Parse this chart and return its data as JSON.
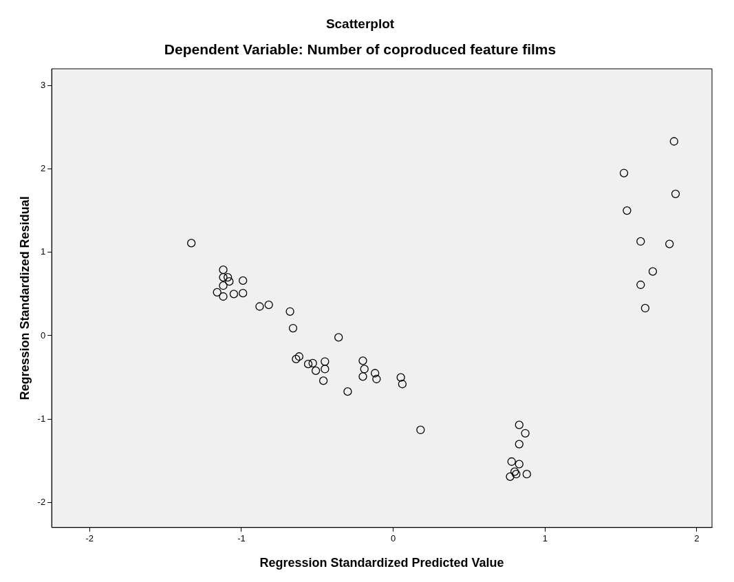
{
  "chart_data": {
    "type": "scatter",
    "title": "Scatterplot",
    "subtitle": "Dependent Variable: Number of coproduced feature films",
    "xlabel": "Regression Standardized Predicted Value",
    "ylabel": "Regression Standardized Residual",
    "xlim": [
      -2.25,
      2.1
    ],
    "ylim": [
      -2.3,
      3.2
    ],
    "xticks": [
      -2,
      -1,
      0,
      1,
      2
    ],
    "yticks": [
      -2,
      -1,
      0,
      1,
      2,
      3
    ],
    "grid": false,
    "legend": false,
    "marker": "circle",
    "series": [
      {
        "color": "#000000",
        "x": [
          -1.33,
          -1.12,
          -1.12,
          -1.09,
          -1.08,
          -1.12,
          -1.16,
          -1.12,
          -0.99,
          -0.99,
          -1.05,
          -0.88,
          -0.82,
          -0.68,
          -0.66,
          -0.36,
          -0.64,
          -0.62,
          -0.56,
          -0.53,
          -0.51,
          -0.45,
          -0.45,
          -0.46,
          -0.3,
          -0.2,
          -0.19,
          -0.2,
          -0.12,
          -0.11,
          0.05,
          0.06,
          0.18,
          0.83,
          0.87,
          0.83,
          0.78,
          0.83,
          0.8,
          0.81,
          0.77,
          0.88,
          1.85,
          1.52,
          1.86,
          1.54,
          1.63,
          1.82,
          1.71,
          1.63,
          1.66
        ],
        "values": [
          1.11,
          0.79,
          0.7,
          0.7,
          0.65,
          0.6,
          0.52,
          0.47,
          0.66,
          0.51,
          0.5,
          0.35,
          0.37,
          0.29,
          0.09,
          -0.02,
          -0.28,
          -0.25,
          -0.34,
          -0.33,
          -0.42,
          -0.31,
          -0.4,
          -0.54,
          -0.67,
          -0.3,
          -0.4,
          -0.49,
          -0.45,
          -0.52,
          -0.5,
          -0.58,
          -1.13,
          -1.07,
          -1.17,
          -1.3,
          -1.51,
          -1.54,
          -1.63,
          -1.66,
          -1.69,
          -1.66,
          2.33,
          1.95,
          1.7,
          1.5,
          1.13,
          1.1,
          0.77,
          0.61,
          0.33
        ]
      }
    ]
  }
}
